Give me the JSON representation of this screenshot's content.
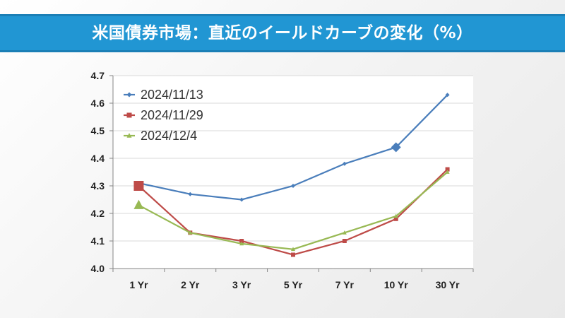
{
  "header": {
    "title": "米国債券市場：直近のイールドカーブの変化（%）"
  },
  "colors": {
    "title_bar": "#2196d3",
    "series_1": "#4a7ebb",
    "series_2": "#be4b48",
    "series_3": "#98b954"
  },
  "chart_data": {
    "type": "line",
    "title": "米国債券市場：直近のイールドカーブの変化（%）",
    "xlabel": "",
    "ylabel": "",
    "categories": [
      "1 Yr",
      "2 Yr",
      "3 Yr",
      "5 Yr",
      "7 Yr",
      "10 Yr",
      "30 Yr"
    ],
    "ylim": [
      4.0,
      4.7
    ],
    "yticks": [
      "4.0",
      "4.1",
      "4.2",
      "4.3",
      "4.4",
      "4.5",
      "4.6",
      "4.7"
    ],
    "grid": true,
    "legend_position": "top-left",
    "series": [
      {
        "name": "2024/11/13",
        "marker": "diamond",
        "color": "#4a7ebb",
        "values": [
          4.31,
          4.27,
          4.25,
          4.3,
          4.38,
          4.44,
          4.63
        ],
        "highlight_index": 5
      },
      {
        "name": "2024/11/29",
        "marker": "square",
        "color": "#be4b48",
        "values": [
          4.3,
          4.13,
          4.1,
          4.05,
          4.1,
          4.18,
          4.36
        ],
        "highlight_index": 0
      },
      {
        "name": "2024/12/4",
        "marker": "triangle",
        "color": "#98b954",
        "values": [
          4.23,
          4.13,
          4.09,
          4.07,
          4.13,
          4.19,
          4.35
        ],
        "highlight_index": 0
      }
    ]
  }
}
